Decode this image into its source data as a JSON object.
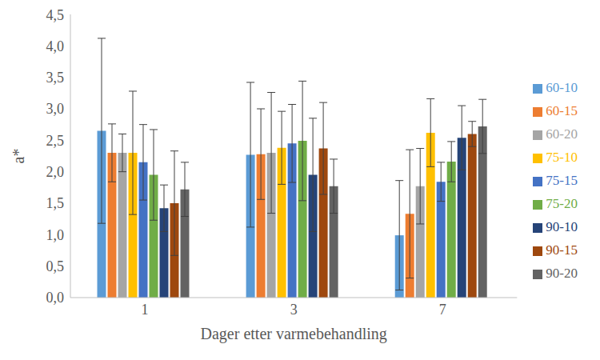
{
  "chart_data": {
    "type": "bar",
    "x_label": "Dager etter varmebehandling",
    "y_label": "a*",
    "categories": [
      "1",
      "3",
      "7"
    ],
    "series": [
      {
        "name": "60-10",
        "color": "#5b9bd5",
        "values": [
          2.65,
          2.27,
          0.99
        ],
        "errors": [
          1.47,
          1.15,
          0.87
        ]
      },
      {
        "name": "60-15",
        "color": "#ed7d31",
        "values": [
          2.3,
          2.28,
          1.33
        ],
        "errors": [
          0.46,
          0.72,
          1.02
        ]
      },
      {
        "name": "60-20",
        "color": "#a5a5a5",
        "values": [
          2.3,
          2.3,
          1.77
        ],
        "errors": [
          0.3,
          0.96,
          0.6
        ]
      },
      {
        "name": "75-10",
        "color": "#ffc000",
        "values": [
          2.3,
          2.38,
          2.62
        ],
        "errors": [
          0.98,
          0.58,
          0.54
        ]
      },
      {
        "name": "75-15",
        "color": "#4472c4",
        "values": [
          2.15,
          2.45,
          1.84
        ],
        "errors": [
          0.6,
          0.62,
          0.31
        ]
      },
      {
        "name": "75-20",
        "color": "#70ad47",
        "values": [
          1.95,
          2.49,
          2.16
        ],
        "errors": [
          0.72,
          0.95,
          0.32
        ]
      },
      {
        "name": "90-10",
        "color": "#264478",
        "values": [
          1.42,
          1.95,
          2.54
        ],
        "errors": [
          0.37,
          0.9,
          0.51
        ]
      },
      {
        "name": "90-15",
        "color": "#9e480e",
        "values": [
          1.5,
          2.37,
          2.6
        ],
        "errors": [
          0.83,
          0.73,
          0.2
        ]
      },
      {
        "name": "90-20",
        "color": "#636363",
        "values": [
          1.72,
          1.77,
          2.72
        ],
        "errors": [
          0.43,
          0.43,
          0.43
        ]
      }
    ],
    "ylim": [
      0,
      4.5
    ],
    "yticks": [
      {
        "value": 0,
        "label": "0,0"
      },
      {
        "value": 0.5,
        "label": "0,5"
      },
      {
        "value": 1,
        "label": "1,0"
      },
      {
        "value": 1.5,
        "label": "1,5"
      },
      {
        "value": 2,
        "label": "2,0"
      },
      {
        "value": 2.5,
        "label": "2,5"
      },
      {
        "value": 3,
        "label": "3,0"
      },
      {
        "value": 3.5,
        "label": "3,5"
      },
      {
        "value": 4,
        "label": "4,0"
      },
      {
        "value": 4.5,
        "label": "4,5"
      }
    ],
    "grid": false,
    "legend": "right"
  }
}
